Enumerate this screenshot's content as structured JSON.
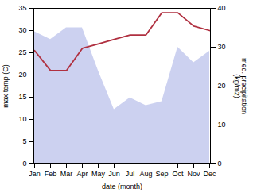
{
  "chart_data": {
    "type": "line",
    "xlabel": "date (month)",
    "ylabel": "max temp (C)",
    "y2label": "med. precipitation\n(kg/m2)",
    "categories": [
      "Jan",
      "Feb",
      "Mar",
      "Apr",
      "May",
      "Jun",
      "Jul",
      "Aug",
      "Sep",
      "Oct",
      "Nov",
      "Dec"
    ],
    "series": [
      {
        "type": "area",
        "axis": "y2",
        "color": "#b0b8e8",
        "values": [
          34,
          32,
          35,
          35,
          24,
          14,
          17,
          15,
          16,
          30,
          26,
          29
        ]
      },
      {
        "type": "line",
        "color": "#b03040",
        "values": [
          25.5,
          21,
          21,
          26,
          27,
          28,
          29,
          29,
          34,
          34,
          31,
          30
        ]
      }
    ],
    "ylim": [
      0,
      35
    ],
    "yticks": [
      0,
      5,
      10,
      15,
      20,
      25,
      30,
      35
    ],
    "y2lim": [
      0,
      40
    ],
    "y2ticks": [
      0,
      10,
      20,
      30,
      40
    ]
  }
}
